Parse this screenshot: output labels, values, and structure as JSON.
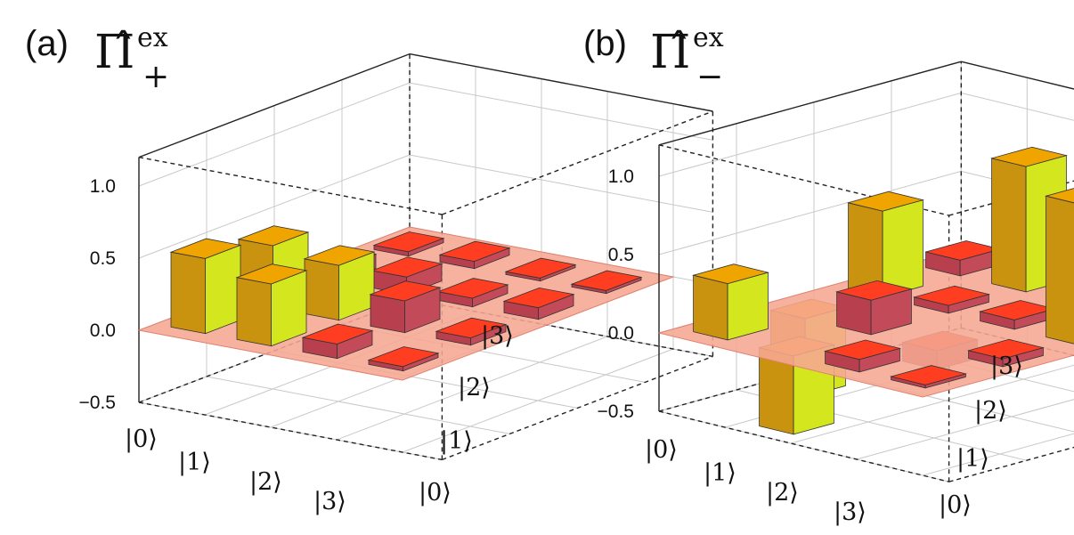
{
  "panels": [
    {
      "label": "(a)",
      "symbol": "Π̂",
      "sup": "ex",
      "sub": "+"
    },
    {
      "label": "(b)",
      "symbol": "Π̂",
      "sup": "ex",
      "sub": "−"
    }
  ],
  "colors": {
    "zero_plane": "#f6a792",
    "grid": "#c8c8c8",
    "box": "#222222",
    "bar_high_top": "#f0a400",
    "bar_high_side": "#d4e61e",
    "bar_high_front": "#c9920f",
    "bar_low_top": "#ff3d20",
    "bar_low_side": "#c34a58",
    "bar_low_front": "#b8404e"
  },
  "chart_data": [
    {
      "type": "bar3d",
      "panel": "(a)",
      "zlim": [
        -0.5,
        1.2
      ],
      "z_ticks": [
        "1.0",
        "0.5",
        "0.0",
        "−0.5"
      ],
      "row_labels": [
        "|0⟩",
        "|1⟩",
        "|2⟩",
        "|3⟩"
      ],
      "col_labels": [
        "|0⟩",
        "|1⟩",
        "|2⟩",
        "|3⟩"
      ],
      "values": [
        [
          0.52,
          0.43,
          0.1,
          0.03
        ],
        [
          0.43,
          0.38,
          0.12,
          0.05
        ],
        [
          0.1,
          0.22,
          0.06,
          0.02
        ],
        [
          0.03,
          0.05,
          0.08,
          0.02
        ]
      ]
    },
    {
      "type": "bar3d",
      "panel": "(b)",
      "zlim": [
        -0.5,
        1.2
      ],
      "z_ticks": [
        "1.0",
        "0.5",
        "0.0",
        "−0.5"
      ],
      "row_labels": [
        "|0⟩",
        "|1⟩",
        "|2⟩",
        "|3⟩"
      ],
      "col_labels": [
        "|0⟩",
        "|1⟩",
        "|2⟩",
        "|3⟩"
      ],
      "values": [
        [
          0.36,
          -0.5,
          0.55,
          0.1
        ],
        [
          -0.5,
          0.22,
          0.05,
          0.8
        ],
        [
          0.08,
          -0.12,
          0.06,
          0.03
        ],
        [
          0.02,
          0.05,
          0.9,
          0.04
        ]
      ]
    }
  ]
}
